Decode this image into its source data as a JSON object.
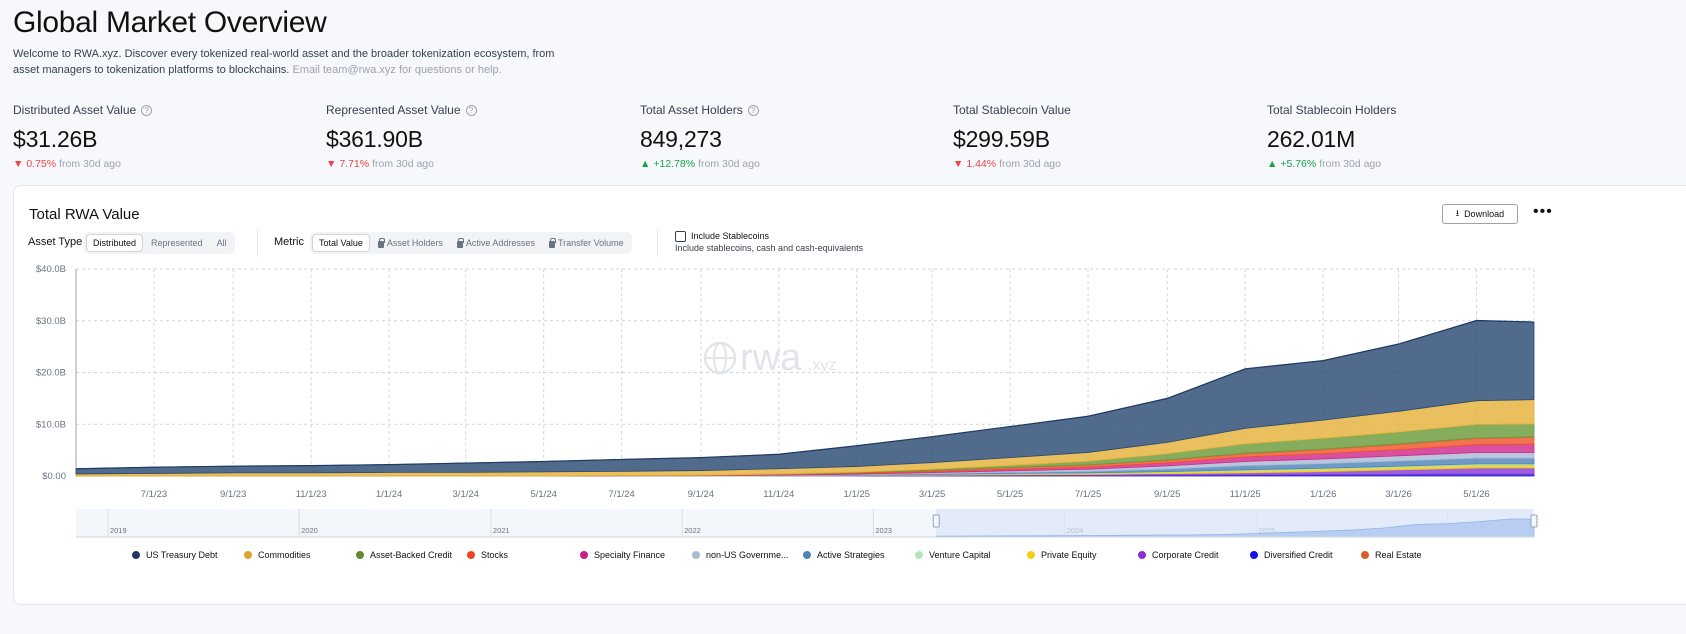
{
  "header": {
    "title": "Global Market Overview",
    "intro_text": "Welcome to RWA.xyz. Discover every tokenized real-world asset and the broader tokenization ecosystem, from asset managers to tokenization platforms to blockchains.",
    "intro_contact": "Email team@rwa.xyz for questions or help."
  },
  "stats": [
    {
      "label": "Distributed Asset Value",
      "has_help": true,
      "value": "$31.26B",
      "change": "0.75%",
      "direction": "down",
      "suffix": "from 30d ago"
    },
    {
      "label": "Represented Asset Value",
      "has_help": true,
      "value": "$361.90B",
      "change": "7.71%",
      "direction": "down",
      "suffix": "from 30d ago"
    },
    {
      "label": "Total Asset Holders",
      "has_help": true,
      "value": "849,273",
      "change": "+12.78%",
      "direction": "up",
      "suffix": "from 30d ago"
    },
    {
      "label": "Total Stablecoin Value",
      "has_help": false,
      "value": "$299.59B",
      "change": "1.44%",
      "direction": "down",
      "suffix": "from 30d ago"
    },
    {
      "label": "Total Stablecoin Holders",
      "has_help": false,
      "value": "262.01M",
      "change": "+5.76%",
      "direction": "up",
      "suffix": "from 30d ago"
    }
  ],
  "card": {
    "title": "Total RWA Value",
    "download_label": "Download",
    "more_label": "•••",
    "asset_type_label": "Asset Type",
    "asset_type_options": [
      "Distributed",
      "Represented",
      "All"
    ],
    "metric_label": "Metric",
    "metric_options": [
      "Total Value",
      "Asset Holders",
      "Active Addresses",
      "Transfer Volume"
    ],
    "stablecoins_label": "Include Stablecoins",
    "stablecoins_sub": "Include stablecoins, cash and cash-equivalents",
    "watermark": "rwa",
    "watermark_suffix": ".xyz",
    "navigator_years": [
      "2019",
      "2020",
      "2021",
      "2022",
      "2023",
      "2024",
      "2025",
      "2026"
    ]
  },
  "colors": {
    "up": "#16a34a",
    "down": "#ef4444",
    "accent": "#3b82f6"
  },
  "chart_data": {
    "type": "area",
    "stacked": true,
    "title": "",
    "xlabel": "",
    "ylabel": "",
    "ylim": [
      0,
      40
    ],
    "y_ticks": [
      "$0.00",
      "$10.0B",
      "$20.0B",
      "$30.0B",
      "$40.0B"
    ],
    "x_ticks": [
      "7/1/23",
      "9/1/23",
      "11/1/23",
      "1/1/24",
      "3/1/24",
      "5/1/24",
      "7/1/24",
      "9/1/24",
      "11/1/24",
      "1/1/25",
      "3/1/25",
      "5/1/25",
      "7/1/25",
      "9/1/25",
      "11/1/25",
      "1/1/26",
      "3/1/26",
      "5/1/26"
    ],
    "x": [
      "5/1/23",
      "7/1/23",
      "9/1/23",
      "11/1/23",
      "1/1/24",
      "3/1/24",
      "5/1/24",
      "7/1/24",
      "9/1/24",
      "11/1/24",
      "1/1/25",
      "3/1/25",
      "5/1/25",
      "7/1/25",
      "9/1/25",
      "11/1/25",
      "1/1/26",
      "3/1/26",
      "5/1/26",
      "6/15/26"
    ],
    "grid": true,
    "legend_position": "bottom",
    "series": [
      {
        "name": "Diversified Credit",
        "color": "#1d1ad8",
        "values": [
          0,
          0,
          0,
          0,
          0,
          0,
          0,
          0,
          0,
          0,
          0,
          0.05,
          0.1,
          0.1,
          0.15,
          0.2,
          0.25,
          0.3,
          0.35,
          0.35
        ]
      },
      {
        "name": "Corporate Credit",
        "color": "#8b3ad8",
        "values": [
          0,
          0,
          0,
          0,
          0,
          0,
          0,
          0,
          0,
          0,
          0.05,
          0.1,
          0.15,
          0.2,
          0.3,
          0.4,
          0.6,
          0.9,
          1.2,
          1.2
        ]
      },
      {
        "name": "Private Equity",
        "color": "#e8cc1d",
        "values": [
          0,
          0,
          0,
          0,
          0,
          0,
          0,
          0,
          0,
          0,
          0.05,
          0.1,
          0.15,
          0.2,
          0.3,
          0.45,
          0.5,
          0.55,
          0.6,
          0.6
        ]
      },
      {
        "name": "Venture Capital",
        "color": "#a9e0b3",
        "values": [
          0,
          0,
          0,
          0,
          0,
          0,
          0,
          0,
          0,
          0,
          0,
          0.05,
          0.1,
          0.1,
          0.1,
          0.15,
          0.15,
          0.15,
          0.2,
          0.2
        ]
      },
      {
        "name": "Active Strategies",
        "color": "#4f84b8",
        "values": [
          0,
          0,
          0,
          0,
          0,
          0,
          0,
          0,
          0,
          0.05,
          0.1,
          0.15,
          0.2,
          0.3,
          0.5,
          0.8,
          0.9,
          1.0,
          1.1,
          1.1
        ]
      },
      {
        "name": "non-US Government Debt",
        "color": "#a9bbd6",
        "values": [
          0,
          0,
          0,
          0,
          0,
          0,
          0,
          0.05,
          0.05,
          0.1,
          0.15,
          0.2,
          0.3,
          0.4,
          0.6,
          0.8,
          0.9,
          1.0,
          1.1,
          1.1
        ]
      },
      {
        "name": "Specialty Finance",
        "color": "#d02b8c",
        "values": [
          0,
          0,
          0,
          0,
          0,
          0,
          0,
          0,
          0.05,
          0.1,
          0.15,
          0.2,
          0.3,
          0.4,
          0.6,
          0.9,
          1.0,
          1.2,
          1.5,
          1.6
        ]
      },
      {
        "name": "Stocks",
        "color": "#f0532a",
        "values": [
          0,
          0,
          0,
          0,
          0,
          0,
          0,
          0.05,
          0.05,
          0.1,
          0.15,
          0.2,
          0.3,
          0.4,
          0.5,
          0.6,
          0.8,
          1.0,
          1.2,
          1.3
        ]
      },
      {
        "name": "Real Estate",
        "color": "#d86a2a",
        "values": [
          0,
          0,
          0,
          0,
          0,
          0,
          0,
          0,
          0,
          0,
          0,
          0.05,
          0.05,
          0.05,
          0.05,
          0.1,
          0.1,
          0.1,
          0.1,
          0.1
        ]
      },
      {
        "name": "Asset-Backed Credit",
        "color": "#6b9a3a",
        "values": [
          0,
          0,
          0,
          0,
          0,
          0,
          0,
          0,
          0,
          0.05,
          0.1,
          0.2,
          0.4,
          0.7,
          1.2,
          1.8,
          2.1,
          2.3,
          2.6,
          2.5
        ]
      },
      {
        "name": "Commodities",
        "color": "#e5b13a",
        "values": [
          0.4,
          0.5,
          0.6,
          0.6,
          0.7,
          0.7,
          0.8,
          0.8,
          0.9,
          1.0,
          1.1,
          1.3,
          1.5,
          1.7,
          2.2,
          3.0,
          3.5,
          4.0,
          4.6,
          4.7
        ]
      },
      {
        "name": "US Treasury Debt",
        "color": "#2b4a73",
        "values": [
          1.0,
          1.2,
          1.3,
          1.4,
          1.5,
          1.8,
          2.0,
          2.3,
          2.5,
          2.8,
          4.0,
          5.0,
          6.0,
          7.0,
          8.5,
          11.5,
          11.5,
          13.0,
          15.5,
          15.0
        ]
      }
    ]
  },
  "legend_labels": [
    "US Treasury Debt",
    "Commodities",
    "Asset-Backed Credit",
    "Stocks",
    "Specialty Finance",
    "non-US Governme...",
    "Active Strategies",
    "Venture Capital",
    "Private Equity",
    "Corporate Credit",
    "Diversified Credit",
    "Real Estate"
  ],
  "legend_colors": [
    "#1f3a63",
    "#e0a22c",
    "#5f8a33",
    "#f0421a",
    "#c81e84",
    "#a9bbd6",
    "#4f84b8",
    "#b6e6bd",
    "#f4cf12",
    "#8c2ed8",
    "#1212e6",
    "#d8612a"
  ]
}
